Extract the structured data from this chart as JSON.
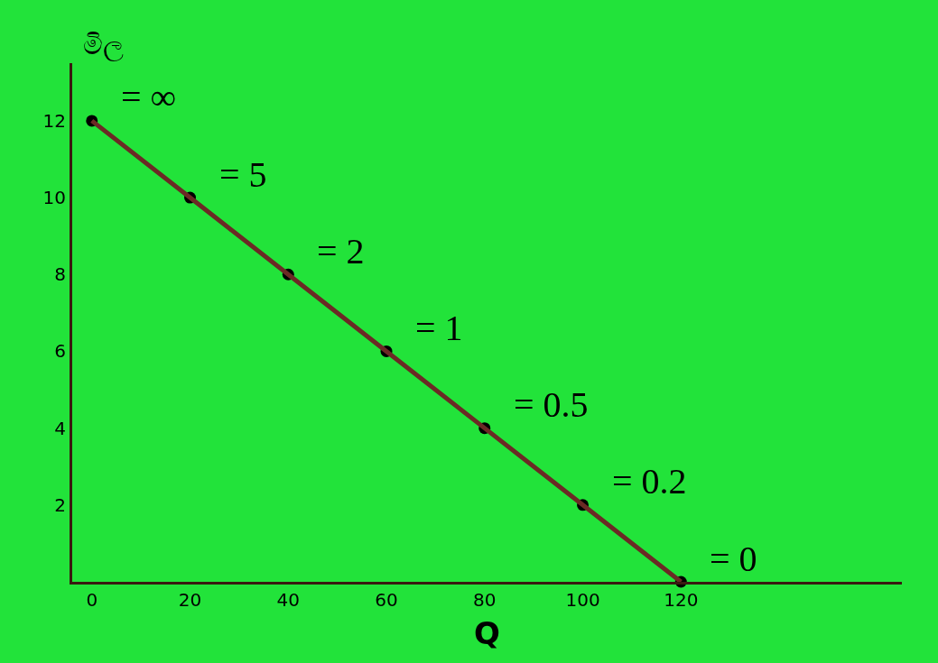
{
  "chart_data": {
    "type": "line",
    "xlabel": "Q",
    "ylabel": "මිල",
    "x": [
      0,
      20,
      40,
      60,
      80,
      100,
      120
    ],
    "series": [
      {
        "type": "scatter",
        "marker": "circle",
        "color": "#000000",
        "values": [
          12,
          10,
          8,
          6,
          4,
          2,
          0
        ]
      },
      {
        "color": "#6b2a25",
        "values": [
          12,
          10,
          8,
          6,
          4,
          2,
          0
        ]
      }
    ],
    "line_style": "solid",
    "xlim": [
      -4,
      165
    ],
    "ylim": [
      0,
      13.5
    ],
    "xticks": [
      0,
      20,
      40,
      60,
      80,
      100,
      120
    ],
    "yticks": [
      2,
      4,
      6,
      8,
      10,
      12
    ],
    "grid": false,
    "annotations": [
      {
        "text": "= ∞",
        "x": 0,
        "y": 12
      },
      {
        "text": "= 5",
        "x": 20,
        "y": 10
      },
      {
        "text": "= 2",
        "x": 40,
        "y": 8
      },
      {
        "text": "= 1",
        "x": 60,
        "y": 6
      },
      {
        "text": "= 0.5",
        "x": 80,
        "y": 4
      },
      {
        "text": "= 0.2",
        "x": 100,
        "y": 2
      },
      {
        "text": "= 0",
        "x": 120,
        "y": 0
      }
    ]
  }
}
